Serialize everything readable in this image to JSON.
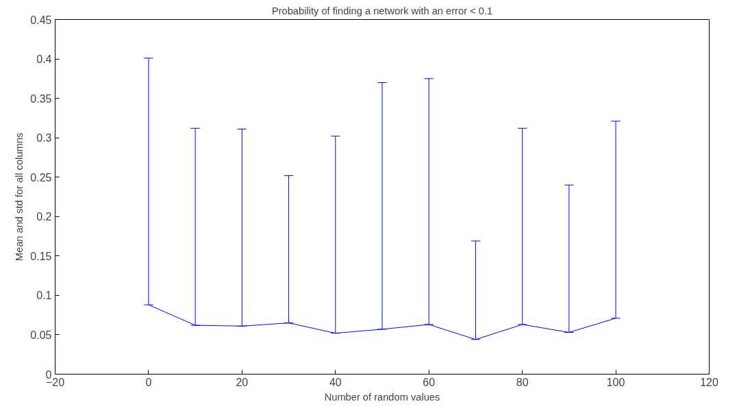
{
  "chart_data": {
    "type": "line",
    "title": "Probability of finding a network with an error < 0.1",
    "xlabel": "Number of random values",
    "ylabel": "Mean and std for all columns",
    "x": [
      0,
      10,
      20,
      30,
      40,
      50,
      60,
      70,
      80,
      90,
      100
    ],
    "series": [
      {
        "color": "#0000ff",
        "values": [
          0.088,
          0.062,
          0.061,
          0.065,
          0.052,
          0.057,
          0.063,
          0.044,
          0.063,
          0.053,
          0.071
        ],
        "errors": [
          [
            0.088,
            0.401
          ],
          [
            0.062,
            0.312
          ],
          [
            0.061,
            0.311
          ],
          [
            0.065,
            0.252
          ],
          [
            0.052,
            0.302
          ],
          [
            0.057,
            0.37
          ],
          [
            0.063,
            0.375
          ],
          [
            0.044,
            0.169
          ],
          [
            0.063,
            0.312
          ],
          [
            0.053,
            0.24
          ],
          [
            0.071,
            0.321
          ]
        ]
      }
    ],
    "xlim": [
      -20,
      120
    ],
    "xticks": [
      -20,
      0,
      20,
      40,
      60,
      80,
      100,
      120
    ],
    "ylim": [
      0,
      0.45
    ],
    "yticks": [
      0,
      0.05,
      0.1,
      0.15,
      0.2,
      0.25,
      0.3,
      0.35,
      0.4,
      0.45
    ],
    "grid": false,
    "marker": "none",
    "line_style": "solid"
  }
}
